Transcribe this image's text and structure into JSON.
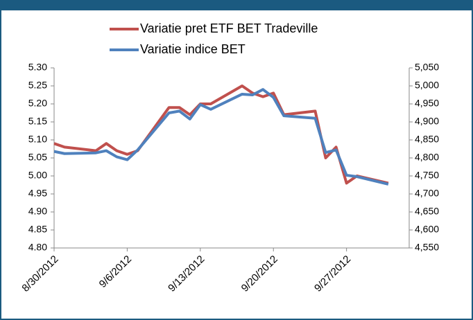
{
  "chart_data": {
    "type": "line",
    "x": [
      "8/30/2012",
      "8/31/2012",
      "9/3/2012",
      "9/4/2012",
      "9/5/2012",
      "9/6/2012",
      "9/7/2012",
      "9/10/2012",
      "9/11/2012",
      "9/12/2012",
      "9/13/2012",
      "9/14/2012",
      "9/17/2012",
      "9/18/2012",
      "9/19/2012",
      "9/20/2012",
      "9/21/2012",
      "9/24/2012",
      "9/25/2012",
      "9/26/2012",
      "9/27/2012",
      "9/28/2012",
      "10/1/2012"
    ],
    "series": [
      {
        "name": "Variatie pret ETF BET Tradeville",
        "color": "#c0504d",
        "values": [
          5.09,
          5.08,
          5.07,
          5.09,
          5.07,
          5.06,
          5.07,
          5.19,
          5.19,
          5.17,
          5.2,
          5.2,
          5.25,
          5.23,
          5.22,
          5.23,
          5.17,
          5.18,
          5.05,
          5.08,
          4.98,
          5.0,
          4.98
        ]
      },
      {
        "name": "Variatie indice BET",
        "color": "#4f81bd",
        "axis": "y2",
        "values": [
          4818,
          4812,
          4814,
          4820,
          4803,
          4795,
          4822,
          4925,
          4930,
          4908,
          4948,
          4935,
          4977,
          4975,
          4990,
          4968,
          4917,
          4910,
          4815,
          4822,
          4752,
          4748,
          4727
        ]
      }
    ],
    "xlim": [
      "8/30/2012",
      "10/3/2012"
    ],
    "xticks": [
      "8/30/2012",
      "9/6/2012",
      "9/13/2012",
      "9/20/2012",
      "9/27/2012"
    ],
    "ylim": [
      4.8,
      5.3
    ],
    "yticks": [
      {
        "value": 4.8,
        "label": "4.80"
      },
      {
        "value": 4.85,
        "label": "4.85"
      },
      {
        "value": 4.9,
        "label": "4.90"
      },
      {
        "value": 4.95,
        "label": "4.95"
      },
      {
        "value": 5.0,
        "label": "5.00"
      },
      {
        "value": 5.05,
        "label": "5.05"
      },
      {
        "value": 5.1,
        "label": "5.10"
      },
      {
        "value": 5.15,
        "label": "5.15"
      },
      {
        "value": 5.2,
        "label": "5.20"
      },
      {
        "value": 5.25,
        "label": "5.25"
      },
      {
        "value": 5.3,
        "label": "5.30"
      }
    ],
    "y2lim": [
      4550,
      5050
    ],
    "y2ticks": [
      {
        "value": 4550,
        "label": "4,550"
      },
      {
        "value": 4600,
        "label": "4,600"
      },
      {
        "value": 4650,
        "label": "4,650"
      },
      {
        "value": 4700,
        "label": "4,700"
      },
      {
        "value": 4750,
        "label": "4,750"
      },
      {
        "value": 4800,
        "label": "4,800"
      },
      {
        "value": 4850,
        "label": "4,850"
      },
      {
        "value": 4900,
        "label": "4,900"
      },
      {
        "value": 4950,
        "label": "4,950"
      },
      {
        "value": 5000,
        "label": "5,000"
      },
      {
        "value": 5050,
        "label": "5,050"
      }
    ],
    "legend": "top"
  }
}
